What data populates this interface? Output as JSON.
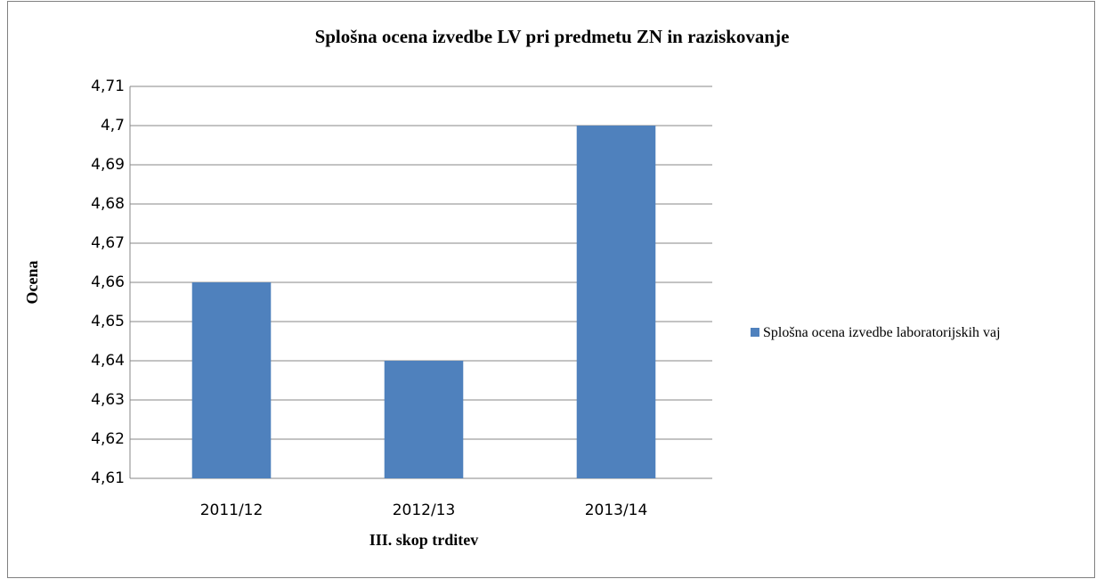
{
  "chart_data": {
    "type": "bar",
    "title": "Splošna ocena izvedbe LV pri predmetu ZN in raziskovanje",
    "x_label": "III. skop trditev",
    "y_label": "Ocena",
    "categories": [
      "2011/12",
      "2012/13",
      "2013/14"
    ],
    "series": [
      {
        "name": "Splošna ocena izvedbe laboratorijskih vaj",
        "color": "#4f81bd",
        "values": [
          4.66,
          4.64,
          4.7
        ]
      }
    ],
    "ylim": [
      4.61,
      4.71
    ],
    "yticks": [
      {
        "value": 4.61,
        "label": "4,61"
      },
      {
        "value": 4.62,
        "label": "4,62"
      },
      {
        "value": 4.63,
        "label": "4,63"
      },
      {
        "value": 4.64,
        "label": "4,64"
      },
      {
        "value": 4.65,
        "label": "4,65"
      },
      {
        "value": 4.66,
        "label": "4,66"
      },
      {
        "value": 4.67,
        "label": "4,67"
      },
      {
        "value": 4.68,
        "label": "4,68"
      },
      {
        "value": 4.69,
        "label": "4,69"
      },
      {
        "value": 4.7,
        "label": "4,7"
      },
      {
        "value": 4.71,
        "label": "4,71"
      }
    ],
    "grid": true,
    "legend": "right"
  }
}
